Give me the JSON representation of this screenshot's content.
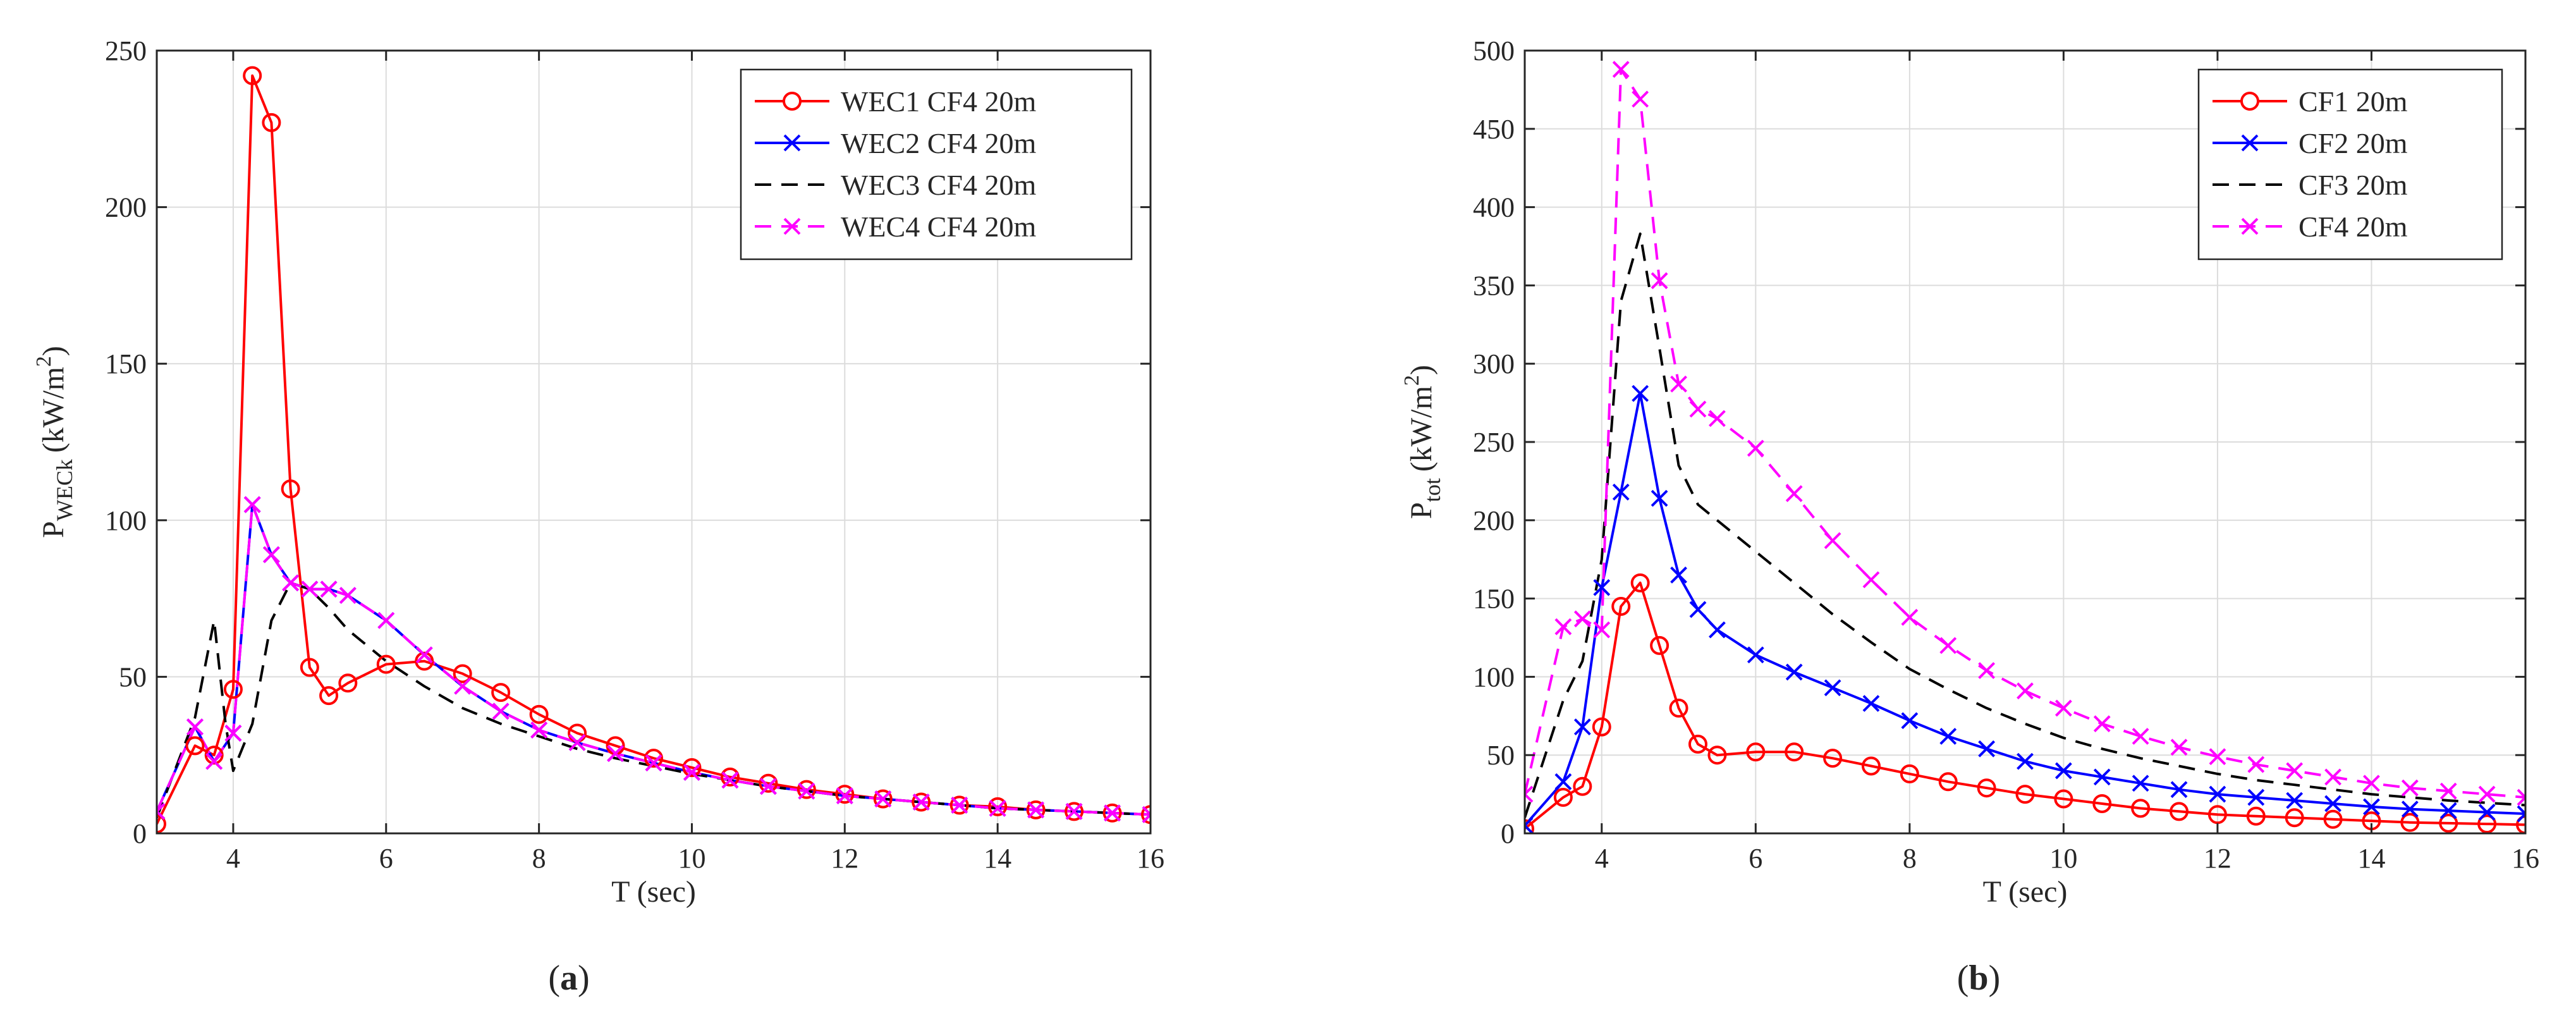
{
  "chart_data": [
    {
      "type": "line",
      "panel_label": "a",
      "title": "",
      "xlabel": "T (sec)",
      "ylabel_main": "P",
      "ylabel_sub": "WECk",
      "ylabel_unit_pre": "(kW/m",
      "ylabel_unit_sup": "2",
      "ylabel_unit_post": ")",
      "xlim": [
        3,
        16
      ],
      "ylim": [
        0,
        250
      ],
      "xticks": [
        4,
        6,
        8,
        10,
        12,
        14,
        16
      ],
      "yticks": [
        0,
        50,
        100,
        150,
        200,
        250
      ],
      "grid": true,
      "legend_position": "top-right",
      "series": [
        {
          "name": "WEC1 CF4 20m",
          "color": "#ff0000",
          "style": "solid",
          "marker": "circle",
          "x": [
            3,
            3.5,
            3.75,
            4,
            4.25,
            4.5,
            4.75,
            5,
            5.25,
            5.5,
            6,
            6.5,
            7,
            7.5,
            8,
            8.5,
            9,
            9.5,
            10,
            10.5,
            11,
            11.5,
            12,
            12.5,
            13,
            13.5,
            14,
            14.5,
            15,
            15.5,
            16
          ],
          "y": [
            3,
            28,
            25,
            46,
            242,
            227,
            110,
            53,
            44,
            48,
            54,
            55,
            51,
            45,
            38,
            32,
            28,
            24,
            21,
            18,
            16,
            14,
            12.5,
            11,
            10,
            9,
            8.5,
            7.5,
            7,
            6.5,
            6
          ]
        },
        {
          "name": "WEC2 CF4 20m",
          "color": "#0000ff",
          "style": "solid",
          "marker": "x",
          "x": [
            3,
            3.5,
            3.75,
            4,
            4.25,
            4.5,
            4.75,
            5,
            5.25,
            5.5,
            6,
            6.5,
            7,
            7.5,
            8,
            8.5,
            9,
            9.5,
            10,
            10.5,
            11,
            11.5,
            12,
            12.5,
            13,
            13.5,
            14,
            14.5,
            15,
            15.5,
            16
          ],
          "y": [
            7,
            34,
            23,
            32,
            105,
            89,
            80,
            78,
            78,
            76,
            68,
            57,
            47,
            39,
            33,
            29,
            25.5,
            22.5,
            19.5,
            17,
            15,
            13.5,
            12,
            11,
            10,
            9,
            8,
            7.5,
            7,
            6.5,
            6
          ]
        },
        {
          "name": "WEC3 CF4 20m",
          "color": "#000000",
          "style": "dashed",
          "marker": "none",
          "x": [
            3,
            3.5,
            3.75,
            3.9,
            4,
            4.25,
            4.5,
            4.75,
            5,
            5.25,
            5.5,
            6,
            6.5,
            7,
            7.5,
            8,
            8.5,
            9,
            9.5,
            10,
            10.5,
            11,
            11.5,
            12,
            12.5,
            13,
            13.5,
            14,
            14.5,
            15,
            15.5,
            16
          ],
          "y": [
            5,
            37,
            68,
            35,
            20,
            35,
            68,
            80,
            78,
            72,
            65,
            55,
            47,
            40,
            35,
            31,
            27,
            24,
            21.5,
            19,
            17,
            15,
            13.5,
            12,
            11,
            10,
            9,
            8,
            7.5,
            7,
            6.5,
            6
          ]
        },
        {
          "name": "WEC4 CF4 20m",
          "color": "#ff00ff",
          "style": "dashed",
          "marker": "x",
          "x": [
            3,
            3.5,
            3.75,
            4,
            4.25,
            4.5,
            4.75,
            5,
            5.25,
            5.5,
            6,
            6.5,
            7,
            7.5,
            8,
            8.5,
            9,
            9.5,
            10,
            10.5,
            11,
            11.5,
            12,
            12.5,
            13,
            13.5,
            14,
            14.5,
            15,
            15.5,
            16
          ],
          "y": [
            7,
            34,
            23,
            32,
            105,
            89,
            80,
            78,
            78,
            76,
            68,
            57,
            47,
            39,
            33,
            29,
            25.5,
            22.5,
            19.5,
            17,
            15,
            13.5,
            12,
            11,
            10,
            9,
            8,
            7.5,
            7,
            6.5,
            6
          ]
        }
      ]
    },
    {
      "type": "line",
      "panel_label": "b",
      "title": "",
      "xlabel": "T (sec)",
      "ylabel_main": "P",
      "ylabel_sub": "tot",
      "ylabel_unit_pre": "(kW/m",
      "ylabel_unit_sup": "2",
      "ylabel_unit_post": ")",
      "xlim": [
        3,
        16
      ],
      "ylim": [
        0,
        500
      ],
      "xticks": [
        4,
        6,
        8,
        10,
        12,
        14,
        16
      ],
      "yticks": [
        0,
        50,
        100,
        150,
        200,
        250,
        300,
        350,
        400,
        450,
        500
      ],
      "grid": true,
      "legend_position": "top-right",
      "series": [
        {
          "name": "CF1 20m",
          "color": "#ff0000",
          "style": "solid",
          "marker": "circle",
          "x": [
            3,
            3.5,
            3.75,
            4,
            4.25,
            4.5,
            4.75,
            5,
            5.25,
            5.5,
            6,
            6.5,
            7,
            7.5,
            8,
            8.5,
            9,
            9.5,
            10,
            10.5,
            11,
            11.5,
            12,
            12.5,
            13,
            13.5,
            14,
            14.5,
            15,
            15.5,
            16
          ],
          "y": [
            3,
            23,
            30,
            68,
            145,
            160,
            120,
            80,
            57,
            50,
            52,
            52,
            48,
            43,
            38,
            33,
            29,
            25,
            22,
            19,
            16,
            14,
            12,
            11,
            10,
            9,
            8,
            7,
            6.5,
            6,
            5.5
          ]
        },
        {
          "name": "CF2 20m",
          "color": "#0000ff",
          "style": "solid",
          "marker": "x",
          "x": [
            3,
            3.5,
            3.75,
            4,
            4.25,
            4.5,
            4.75,
            5,
            5.25,
            5.5,
            6,
            6.5,
            7,
            7.5,
            8,
            8.5,
            9,
            9.5,
            10,
            10.5,
            11,
            11.5,
            12,
            12.5,
            13,
            13.5,
            14,
            14.5,
            15,
            15.5,
            16
          ],
          "y": [
            5,
            33,
            68,
            157,
            218,
            281,
            214,
            165,
            143,
            130,
            114,
            103,
            93,
            83,
            72,
            62,
            54,
            46,
            40,
            36,
            32,
            28,
            25,
            23,
            21,
            19,
            17,
            15.5,
            14.5,
            13.5,
            12.5
          ]
        },
        {
          "name": "CF3 20m",
          "color": "#000000",
          "style": "dashed",
          "marker": "none",
          "x": [
            3,
            3.5,
            3.75,
            4,
            4.25,
            4.5,
            4.75,
            5,
            5.25,
            5.5,
            6,
            6.5,
            7,
            7.5,
            8,
            8.5,
            9,
            9.5,
            10,
            10.5,
            11,
            11.5,
            12,
            12.5,
            13,
            13.5,
            14,
            14.5,
            15,
            15.5,
            16
          ],
          "y": [
            10,
            85,
            110,
            175,
            340,
            383,
            310,
            235,
            210,
            200,
            180,
            160,
            140,
            122,
            105,
            92,
            80,
            70,
            61,
            54,
            48,
            43,
            38,
            34,
            31,
            28,
            25,
            23,
            21,
            19.5,
            18
          ]
        },
        {
          "name": "CF4 20m",
          "color": "#ff00ff",
          "style": "dashed",
          "marker": "x",
          "x": [
            3,
            3.5,
            3.75,
            4,
            4.25,
            4.5,
            4.75,
            5,
            5.25,
            5.5,
            6,
            6.5,
            7,
            7.5,
            8,
            8.5,
            9,
            9.5,
            10,
            10.5,
            11,
            11.5,
            12,
            12.5,
            13,
            13.5,
            14,
            14.5,
            15,
            15.5,
            16
          ],
          "y": [
            25,
            132,
            137,
            130,
            488,
            469,
            353,
            287,
            271,
            265,
            246,
            217,
            187,
            162,
            138,
            120,
            104,
            91,
            80,
            70,
            62,
            55,
            49,
            44,
            40,
            36,
            32,
            29,
            27,
            25,
            23
          ]
        }
      ]
    }
  ]
}
